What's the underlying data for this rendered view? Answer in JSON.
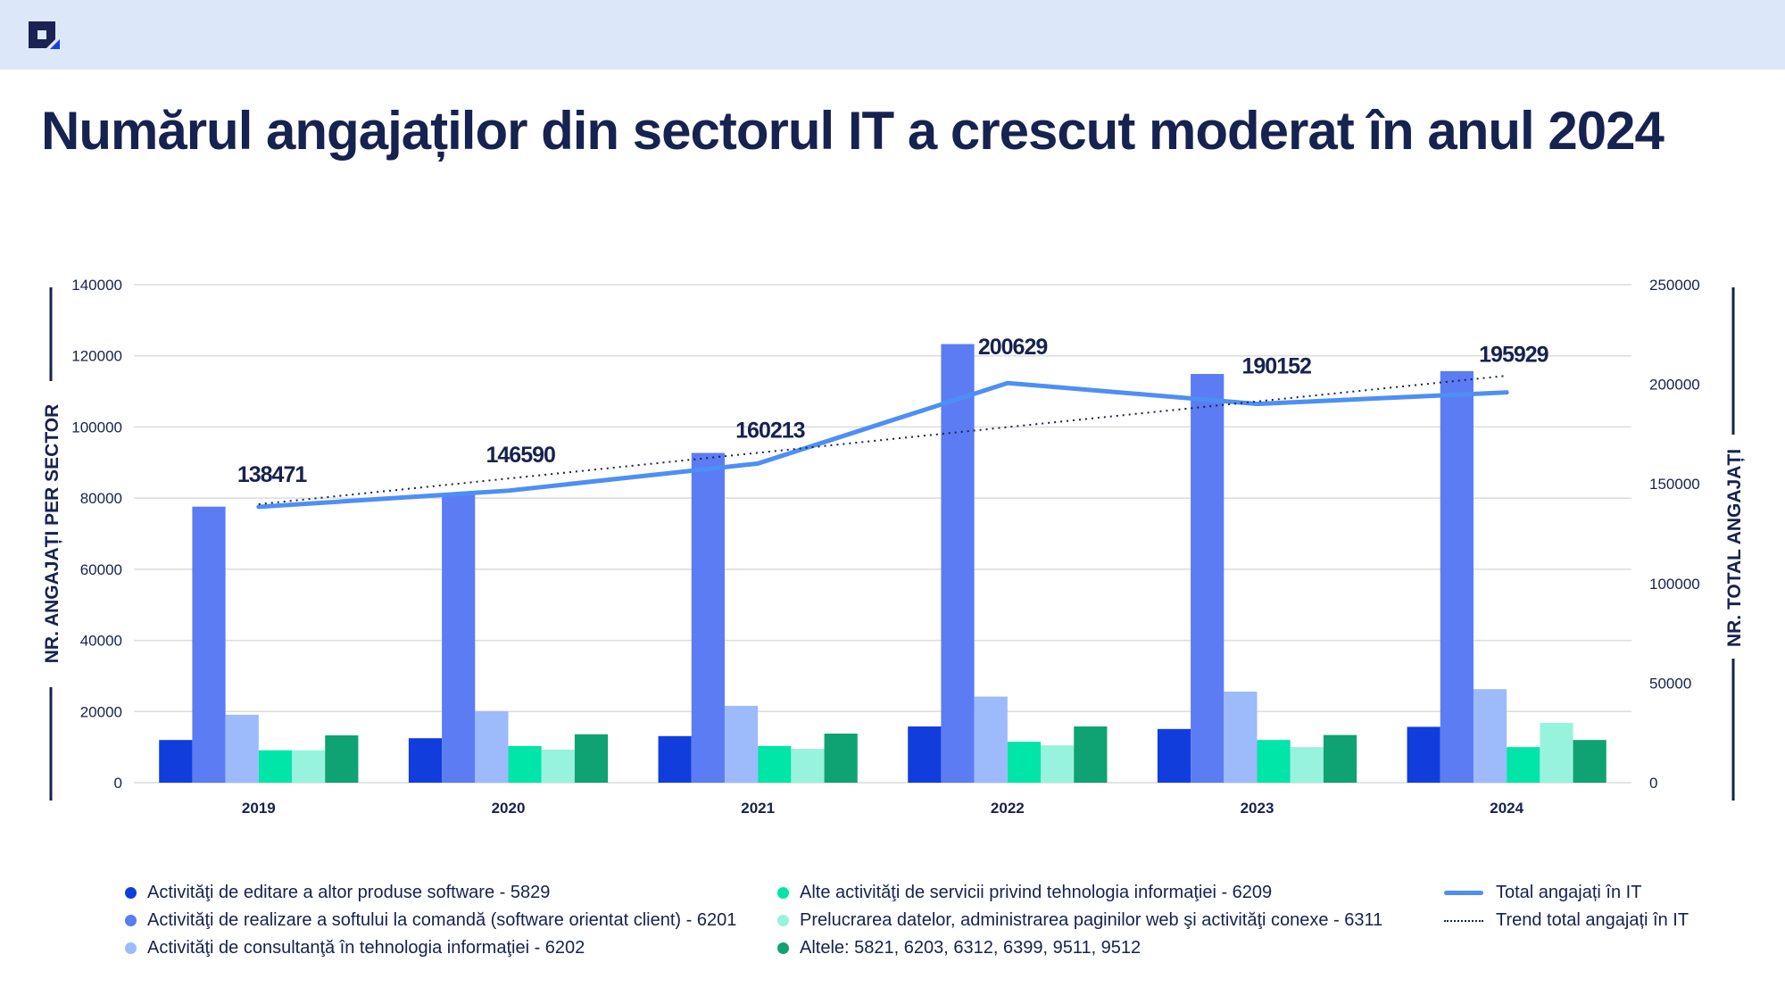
{
  "header": {
    "logo": "brand-logo-icon"
  },
  "title": "Numărul angajaților din sectorul IT a crescut moderat în anul 2024",
  "chart_data": {
    "type": "bar",
    "title": "Numărul angajaților din sectorul IT a crescut moderat în anul 2024",
    "categories": [
      "2019",
      "2020",
      "2021",
      "2022",
      "2023",
      "2024"
    ],
    "ylabel": "NR. ANGAJAȚI PER SECTOR",
    "y2label": "NR. TOTAL ANGAJAȚI",
    "ylim": [
      0,
      140000
    ],
    "y2lim": [
      0,
      250000
    ],
    "yticks": [
      "0",
      "20000",
      "40000",
      "60000",
      "80000",
      "100000",
      "120000",
      "140000"
    ],
    "y2ticks": [
      "0",
      "50000",
      "100000",
      "150000",
      "200000",
      "250000"
    ],
    "grid": true,
    "legend_position": "bottom",
    "series": [
      {
        "name": "Activităţi de editare a altor produse software - 5829",
        "color": "#123ddd",
        "values": [
          12000,
          12500,
          13100,
          15800,
          15100,
          15700
        ]
      },
      {
        "name": "Activităţi de realizare a softului la comandă (software orientat client) - 6201",
        "color": "#5b7cf2",
        "values": [
          77600,
          80900,
          92700,
          123300,
          114900,
          115700
        ]
      },
      {
        "name": "Activităţi de consultanţă în tehnologia informaţiei - 6202",
        "color": "#9dbafa",
        "values": [
          19100,
          20100,
          21600,
          24200,
          25600,
          26300
        ]
      },
      {
        "name": "Alte activităţi de servicii privind tehnologia informaţiei - 6209",
        "color": "#00e5a8",
        "values": [
          9100,
          10300,
          10300,
          11500,
          12000,
          10000
        ]
      },
      {
        "name": "Prelucrarea datelor, administrarea paginilor web şi activităţi conexe - 6311",
        "color": "#98f3dc",
        "values": [
          9100,
          9300,
          9500,
          10500,
          10000,
          16800
        ]
      },
      {
        "name": "Altele: 5821, 6203, 6312, 6399, 9511, 9512",
        "color": "#0fa272",
        "values": [
          13300,
          13600,
          13800,
          15800,
          13400,
          12000
        ]
      }
    ],
    "lines": [
      {
        "name": "Total angajați în IT",
        "axis": "right",
        "color": "#4d8ff5",
        "style": "solid",
        "values": [
          138471,
          146590,
          160213,
          200629,
          190152,
          195929
        ],
        "labels": [
          "138471",
          "146590",
          "160213",
          "200629",
          "190152",
          "195929"
        ]
      },
      {
        "name": "Trend total angajați în IT",
        "axis": "right",
        "color": "#16224f",
        "style": "dotted",
        "values": [
          139800,
          152700,
          165600,
          178500,
          191400,
          204300
        ]
      }
    ]
  },
  "legend": {
    "col1": [
      "Activităţi de editare a altor produse software - 5829",
      "Activităţi de realizare a softului la comandă (software orientat client) - 6201",
      "Activităţi de consultanţă în tehnologia informaţiei - 6202"
    ],
    "col2": [
      "Alte activităţi de servicii privind tehnologia informaţiei - 6209",
      "Prelucrarea datelor, administrarea paginilor web şi activităţi conexe - 6311",
      "Altele: 5821, 6203, 6312, 6399, 9511, 9512"
    ],
    "col3": [
      "Total angajați în IT",
      "Trend total angajați în IT"
    ]
  }
}
